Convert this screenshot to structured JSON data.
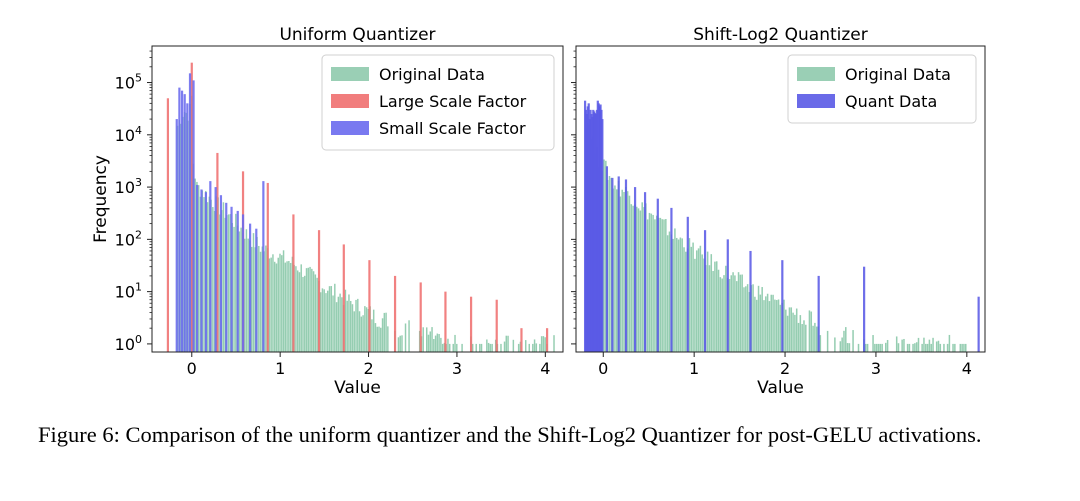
{
  "caption": "Figure 6: Comparison of the uniform quantizer and the Shift-Log2 Quantizer for post-GELU activations.",
  "chart_data": [
    {
      "type": "bar",
      "title": "Uniform Quantizer",
      "xlabel": "Value",
      "ylabel": "Frequency",
      "yscale": "log",
      "xlim": [
        -0.45,
        4.2
      ],
      "ylim": [
        0.7,
        500000
      ],
      "xticks": [
        0,
        1,
        2,
        3,
        4
      ],
      "yticks": [
        1,
        10,
        100,
        1000,
        10000,
        100000
      ],
      "ytick_labels": [
        "10^0",
        "10^1",
        "10^2",
        "10^3",
        "10^4",
        "10^5"
      ],
      "legend_position": "upper right",
      "series": [
        {
          "name": "Original Data",
          "kind": "histogram",
          "color": "#8fcaad",
          "bin_width": 0.02,
          "points": [
            [
              -0.17,
              15000
            ],
            [
              -0.14,
              20000
            ],
            [
              -0.1,
              30000
            ],
            [
              -0.06,
              25000
            ],
            [
              -0.02,
              30000
            ],
            [
              0,
              90000
            ],
            [
              0.01,
              3000
            ],
            [
              0.05,
              1000
            ],
            [
              0.1,
              900
            ],
            [
              0.2,
              600
            ],
            [
              0.3,
              420
            ],
            [
              0.4,
              300
            ],
            [
              0.5,
              200
            ],
            [
              0.6,
              130
            ],
            [
              0.7,
              90
            ],
            [
              0.8,
              65
            ],
            [
              0.9,
              55
            ],
            [
              1.0,
              45
            ],
            [
              1.1,
              38
            ],
            [
              1.2,
              30
            ],
            [
              1.3,
              22
            ],
            [
              1.4,
              17
            ],
            [
              1.5,
              12
            ],
            [
              1.6,
              10
            ],
            [
              1.7,
              8
            ],
            [
              1.8,
              6
            ],
            [
              1.9,
              5
            ],
            [
              2.0,
              4
            ],
            [
              2.1,
              3
            ],
            [
              2.2,
              3
            ],
            [
              2.3,
              2
            ],
            [
              2.4,
              2
            ],
            [
              2.5,
              2
            ],
            [
              2.6,
              1.5
            ],
            [
              2.7,
              1.5
            ],
            [
              2.8,
              1
            ],
            [
              2.9,
              1
            ],
            [
              3.0,
              1
            ],
            [
              3.1,
              1
            ],
            [
              3.2,
              1
            ],
            [
              3.3,
              1
            ],
            [
              3.5,
              1
            ],
            [
              3.7,
              1
            ],
            [
              3.9,
              1
            ],
            [
              4.1,
              1
            ]
          ]
        },
        {
          "name": "Large Scale Factor",
          "kind": "spikes",
          "color": "#ef6f6f",
          "x": [
            -0.27,
            0.0,
            0.29,
            0.58,
            0.86,
            1.15,
            1.44,
            1.72,
            2.01,
            2.3,
            2.59,
            2.87,
            3.16,
            3.45,
            3.73,
            4.02
          ],
          "y": [
            50000,
            240000,
            4500,
            2000,
            1200,
            300,
            150,
            80,
            40,
            20,
            15,
            10,
            8,
            7,
            2,
            2
          ]
        },
        {
          "name": "Small Scale Factor",
          "kind": "spikes",
          "color": "#6a6aee",
          "x": [
            -0.17,
            -0.14,
            -0.11,
            -0.08,
            -0.05,
            -0.02,
            0.02,
            0.06,
            0.11,
            0.16,
            0.21,
            0.27,
            0.33,
            0.39,
            0.45,
            0.52,
            0.58,
            0.66,
            0.73,
            0.81
          ],
          "y": [
            20000,
            80000,
            70000,
            60000,
            40000,
            150000,
            110000,
            1100,
            900,
            800,
            1300,
            1000,
            700,
            500,
            420,
            350,
            300,
            200,
            160,
            1300
          ]
        }
      ]
    },
    {
      "type": "bar",
      "title": "Shift-Log2 Quantizer",
      "xlabel": "Value",
      "yscale": "log",
      "xlim": [
        -0.3,
        4.2
      ],
      "ylim": [
        0.7,
        500000
      ],
      "xticks": [
        0,
        1,
        2,
        3,
        4
      ],
      "legend_position": "upper right",
      "series": [
        {
          "name": "Original Data",
          "kind": "histogram",
          "color": "#8fcaad",
          "bin_width": 0.02,
          "points": [
            [
              -0.2,
              20000
            ],
            [
              -0.15,
              15000
            ],
            [
              -0.1,
              5000
            ],
            [
              -0.05,
              3000
            ],
            [
              0,
              2500
            ],
            [
              0.1,
              1200
            ],
            [
              0.2,
              900
            ],
            [
              0.3,
              700
            ],
            [
              0.4,
              450
            ],
            [
              0.5,
              320
            ],
            [
              0.6,
              220
            ],
            [
              0.7,
              160
            ],
            [
              0.8,
              110
            ],
            [
              0.9,
              85
            ],
            [
              1.0,
              60
            ],
            [
              1.1,
              45
            ],
            [
              1.2,
              35
            ],
            [
              1.3,
              25
            ],
            [
              1.4,
              20
            ],
            [
              1.5,
              15
            ],
            [
              1.6,
              12
            ],
            [
              1.7,
              10
            ],
            [
              1.8,
              8
            ],
            [
              1.9,
              6
            ],
            [
              2.0,
              5
            ],
            [
              2.1,
              4
            ],
            [
              2.2,
              3
            ],
            [
              2.3,
              3
            ],
            [
              2.4,
              2
            ],
            [
              2.5,
              2
            ],
            [
              2.6,
              1.5
            ],
            [
              2.7,
              1.5
            ],
            [
              2.8,
              1
            ],
            [
              2.9,
              1
            ],
            [
              3.1,
              1
            ],
            [
              3.3,
              1
            ],
            [
              3.5,
              1
            ],
            [
              3.8,
              1
            ],
            [
              4.0,
              1
            ]
          ]
        },
        {
          "name": "Quant Data",
          "kind": "spikes",
          "color": "#5a5ae6",
          "x": [
            -0.2,
            -0.19,
            -0.18,
            -0.17,
            -0.16,
            -0.15,
            -0.14,
            -0.13,
            -0.12,
            -0.11,
            -0.1,
            -0.09,
            -0.08,
            -0.07,
            -0.06,
            -0.05,
            -0.04,
            -0.03,
            -0.02,
            -0.01,
            0.04,
            0.1,
            0.17,
            0.25,
            0.35,
            0.46,
            0.6,
            0.75,
            0.93,
            1.12,
            1.37,
            1.62,
            1.97,
            2.37,
            2.87,
            4.13
          ],
          "y": [
            45000,
            30000,
            25000,
            35000,
            40000,
            20000,
            30000,
            25000,
            22000,
            30000,
            28000,
            26000,
            25000,
            30000,
            45000,
            40000,
            35000,
            38000,
            30000,
            20000,
            2500,
            1500,
            1600,
            1400,
            1000,
            800,
            600,
            400,
            270,
            150,
            100,
            60,
            40,
            20,
            30,
            8
          ]
        }
      ]
    }
  ]
}
